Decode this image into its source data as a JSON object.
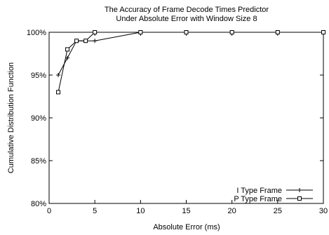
{
  "chart_data": {
    "type": "line",
    "title": "The Accuracy of Frame Decode Times Predictor",
    "subtitle": "Under Absolute Error with Window Size 8",
    "xlabel": "Absolute Error (ms)",
    "ylabel": "Cumulative Distribution Function",
    "xlim": [
      0,
      30
    ],
    "ylim": [
      80,
      100
    ],
    "x_ticks": [
      0,
      5,
      10,
      15,
      20,
      25,
      30
    ],
    "y_ticks": [
      80,
      85,
      90,
      95,
      100
    ],
    "x_tick_labels": [
      "0",
      "5",
      "10",
      "15",
      "20",
      "25",
      "30"
    ],
    "y_tick_labels": [
      "80%",
      "85%",
      "90%",
      "95%",
      "100%"
    ],
    "grid": false,
    "legend_position": "bottom-right",
    "series": [
      {
        "name": "I Type Frame",
        "marker": "plus",
        "color": "#000000",
        "x": [
          1,
          2,
          3,
          4,
          5,
          10,
          15,
          20,
          25,
          30
        ],
        "y": [
          95,
          97,
          99,
          99,
          99,
          100,
          100,
          100,
          100,
          100
        ]
      },
      {
        "name": "P Type Frame",
        "marker": "square",
        "color": "#000000",
        "x": [
          1,
          2,
          3,
          4,
          5,
          10,
          15,
          20,
          25,
          30
        ],
        "y": [
          93,
          98,
          99,
          99,
          100,
          100,
          100,
          100,
          100,
          100
        ]
      }
    ]
  }
}
